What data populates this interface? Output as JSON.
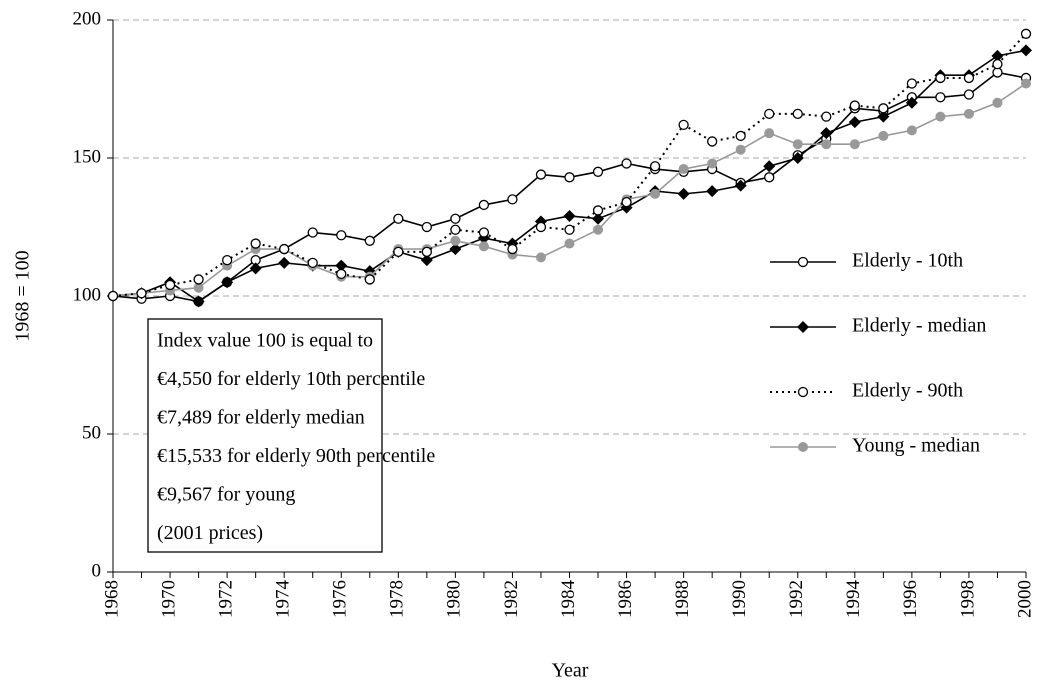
{
  "chart_data": {
    "type": "line",
    "x": [
      1968,
      1969,
      1970,
      1971,
      1972,
      1973,
      1974,
      1975,
      1976,
      1977,
      1978,
      1979,
      1980,
      1981,
      1982,
      1983,
      1984,
      1985,
      1986,
      1987,
      1988,
      1989,
      1990,
      1991,
      1992,
      1993,
      1994,
      1995,
      1996,
      1997,
      1998,
      1999,
      2000
    ],
    "xlim": [
      1968,
      2000
    ],
    "xticks": [
      1968,
      1970,
      1972,
      1974,
      1976,
      1978,
      1980,
      1982,
      1984,
      1986,
      1988,
      1990,
      1992,
      1994,
      1996,
      1998,
      2000
    ],
    "ylim": [
      0,
      200
    ],
    "yticks": [
      0,
      50,
      100,
      150,
      200
    ],
    "grid": true,
    "xlabel": "Year",
    "ylabel": "1968 = 100",
    "series": [
      {
        "name": "Elderly - 10th",
        "color": "#000000",
        "marker": "circle-open",
        "line_style": "solid",
        "values": [
          100,
          99,
          100,
          98,
          105,
          113,
          117,
          123,
          122,
          120,
          128,
          125,
          128,
          133,
          135,
          144,
          143,
          145,
          148,
          146,
          145,
          146,
          141,
          143,
          151,
          157,
          168,
          167,
          172,
          172,
          173,
          181,
          179
        ]
      },
      {
        "name": "Elderly - median",
        "color": "#000000",
        "marker": "diamond",
        "line_style": "solid",
        "values": [
          100,
          101,
          105,
          98,
          105,
          110,
          112,
          111,
          111,
          109,
          116,
          113,
          117,
          121,
          119,
          127,
          129,
          128,
          132,
          138,
          137,
          138,
          140,
          147,
          150,
          159,
          163,
          165,
          170,
          180,
          180,
          187,
          189
        ]
      },
      {
        "name": "Elderly - 90th",
        "color": "#000000",
        "marker": "circle-open",
        "line_style": "dotted",
        "values": [
          100,
          101,
          104,
          106,
          113,
          119,
          117,
          112,
          108,
          106,
          116,
          116,
          124,
          123,
          117,
          125,
          124,
          131,
          134,
          147,
          162,
          156,
          158,
          166,
          166,
          165,
          169,
          168,
          177,
          179,
          179,
          184,
          195
        ]
      },
      {
        "name": "Young - median",
        "color": "#999999",
        "marker": "circle-filled",
        "line_style": "solid",
        "values": [
          100,
          101,
          102,
          103,
          111,
          117,
          117,
          111,
          107,
          107,
          117,
          117,
          120,
          118,
          115,
          114,
          119,
          124,
          135,
          137,
          146,
          148,
          153,
          159,
          155,
          155,
          155,
          158,
          160,
          165,
          166,
          170,
          177
        ]
      }
    ],
    "annotation": [
      "Index value 100 is equal to",
      "€4,550  for elderly 10th percentile",
      "€7,489 for elderly median",
      "€15,533 for elderly 90th percentile",
      "€9,567 for young",
      "(2001 prices)"
    ]
  }
}
